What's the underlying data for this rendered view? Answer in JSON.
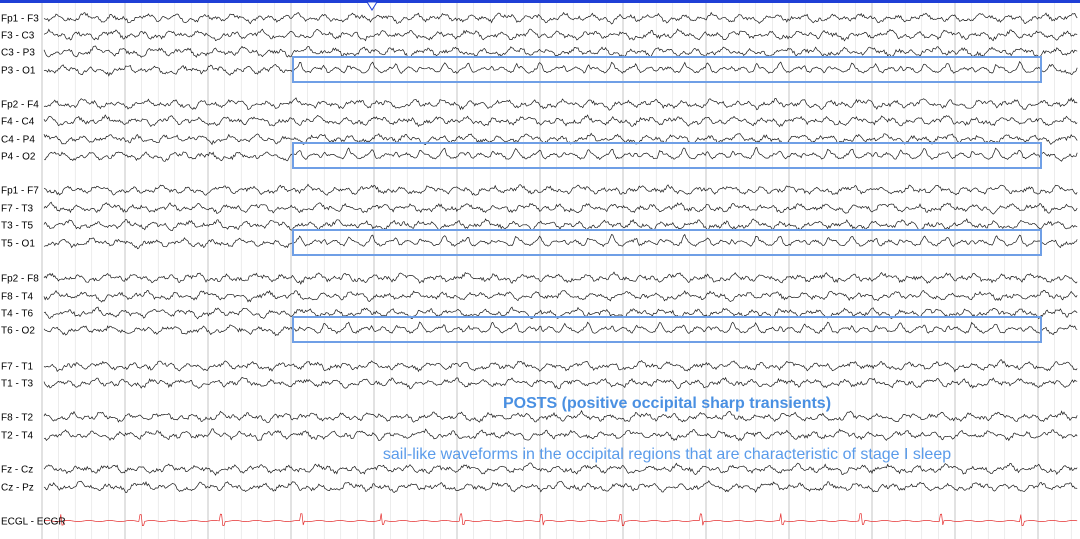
{
  "channels": [
    {
      "label": "Fp1 - F3",
      "type": "eeg"
    },
    {
      "label": "F3 - C3",
      "type": "eeg"
    },
    {
      "label": "C3 - P3",
      "type": "eeg"
    },
    {
      "label": "P3 - O1",
      "type": "eeg",
      "posts": true
    },
    {
      "label": "Fp2 - F4",
      "type": "eeg"
    },
    {
      "label": "F4 - C4",
      "type": "eeg"
    },
    {
      "label": "C4 - P4",
      "type": "eeg"
    },
    {
      "label": "P4 - O2",
      "type": "eeg",
      "posts": true
    },
    {
      "label": "Fp1 - F7",
      "type": "eeg"
    },
    {
      "label": "F7 - T3",
      "type": "eeg"
    },
    {
      "label": "T3 - T5",
      "type": "eeg"
    },
    {
      "label": "T5 - O1",
      "type": "eeg",
      "posts": true
    },
    {
      "label": "Fp2 - F8",
      "type": "eeg"
    },
    {
      "label": "F8 - T4",
      "type": "eeg"
    },
    {
      "label": "T4 - T6",
      "type": "eeg"
    },
    {
      "label": "T6 - O2",
      "type": "eeg",
      "posts": true
    },
    {
      "label": "F7 - T1",
      "type": "eeg"
    },
    {
      "label": "T1 - T3",
      "type": "eeg"
    },
    {
      "label": "F8 - T2",
      "type": "eeg"
    },
    {
      "label": "T2 - T4",
      "type": "eeg"
    },
    {
      "label": "Fz - Cz",
      "type": "eeg"
    },
    {
      "label": "Cz - Pz",
      "type": "eeg"
    },
    {
      "label": "ECGL - ECGR",
      "type": "ecg"
    }
  ],
  "annotation": {
    "title": "POSTS (positive occipital sharp transients)",
    "subtitle": "sail-like waveforms in the occipital regions that are characteristic of stage I sleep"
  },
  "colors": {
    "trace": "#1a1a1a",
    "ecg_trace": "#e53030",
    "ecg_label": "#e53030",
    "highlight": "#6f9fe6",
    "annotation": "#4a90e2",
    "grid": "#d9d9d9",
    "top_bar": "#1f3fd6"
  },
  "icons": {
    "time_marker": "triangle-down-icon"
  }
}
